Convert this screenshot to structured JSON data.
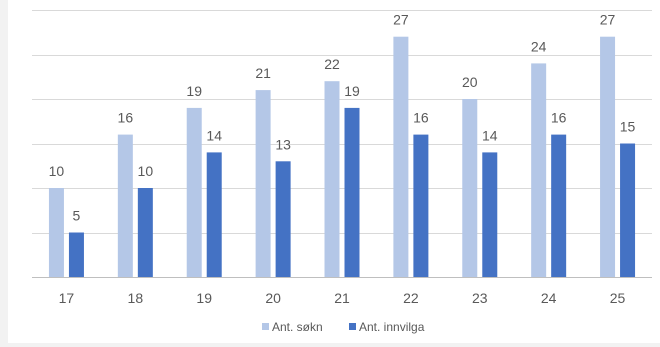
{
  "chart_data": {
    "type": "bar",
    "title": "",
    "xlabel": "",
    "ylabel": "",
    "categories": [
      "17",
      "18",
      "19",
      "20",
      "21",
      "22",
      "23",
      "24",
      "25"
    ],
    "series": [
      {
        "name": "Ant. søkn",
        "values": [
          10,
          16,
          19,
          21,
          22,
          27,
          20,
          24,
          27
        ],
        "color": "#b4c7e7"
      },
      {
        "name": "Ant. innvilga",
        "values": [
          5,
          10,
          14,
          13,
          19,
          16,
          14,
          16,
          15
        ],
        "color": "#4472c4"
      }
    ],
    "ylim": [
      0,
      30
    ],
    "grid": true,
    "legend_position": "bottom"
  }
}
